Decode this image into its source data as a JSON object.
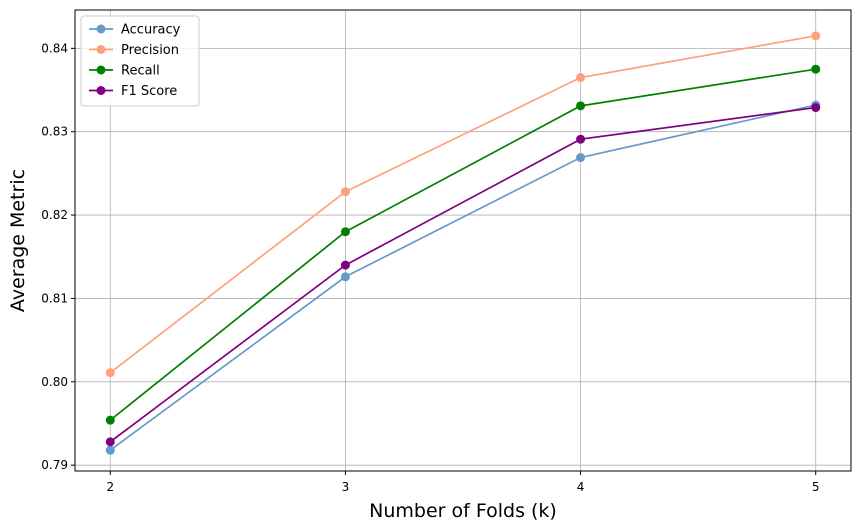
{
  "chart_data": {
    "type": "line",
    "title": "",
    "xlabel": "Number of Folds (k)",
    "ylabel": "Average Metric",
    "x": [
      2,
      3,
      4,
      5
    ],
    "xlim": [
      1.85,
      5.15
    ],
    "ylim": [
      0.7893,
      0.8446
    ],
    "xticks": [
      2,
      3,
      4,
      5
    ],
    "yticks": [
      0.79,
      0.8,
      0.81,
      0.82,
      0.83,
      0.84
    ],
    "ytick_labels": [
      "0.79",
      "0.80",
      "0.81",
      "0.82",
      "0.83",
      "0.84"
    ],
    "grid": true,
    "legend_position": "top-left",
    "series": [
      {
        "name": "Accuracy",
        "color": "#6699cc",
        "values": [
          0.7918,
          0.8126,
          0.8269,
          0.8332
        ]
      },
      {
        "name": "Precision",
        "color": "#ffa07a",
        "values": [
          0.8011,
          0.8228,
          0.8365,
          0.8415
        ]
      },
      {
        "name": "Recall",
        "color": "#008000",
        "values": [
          0.7954,
          0.818,
          0.8331,
          0.8375
        ]
      },
      {
        "name": "F1 Score",
        "color": "#800080",
        "values": [
          0.7928,
          0.814,
          0.8291,
          0.8329
        ]
      }
    ]
  }
}
